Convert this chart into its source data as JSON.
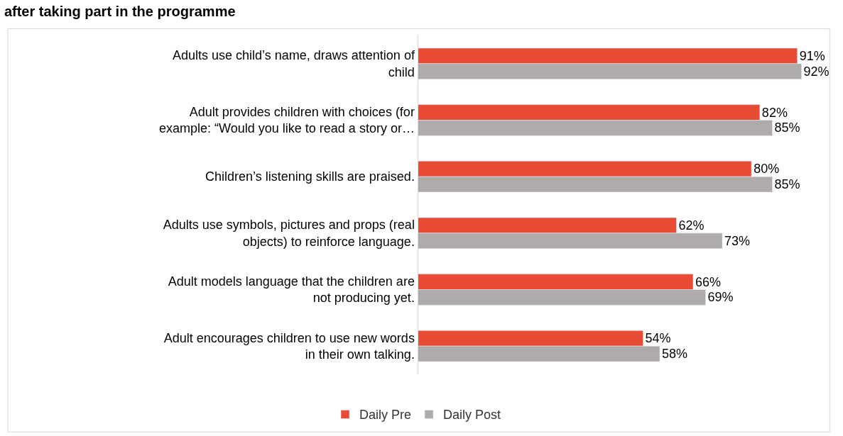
{
  "chart_data": {
    "type": "bar",
    "orientation": "horizontal",
    "title": "after taking part in the programme",
    "categories": [
      "Adults use child’s name, draws attention of child",
      "Adult provides children with choices (for example: “Would you like to read a story or…",
      "Children’s listening skills are praised.",
      "Adults use symbols, pictures and props (real objects) to reinforce language.",
      "Adult models language that the children are not producing yet.",
      "Adult encourages children to use new words in their own talking."
    ],
    "series": [
      {
        "name": "Daily Pre",
        "color": "#e84c35",
        "values": [
          91,
          82,
          80,
          62,
          66,
          54
        ],
        "value_labels": [
          "91%",
          "82%",
          "80%",
          "62%",
          "66%",
          "54%"
        ]
      },
      {
        "name": "Daily Post",
        "color": "#afabab",
        "values": [
          92,
          85,
          85,
          73,
          69,
          58
        ],
        "value_labels": [
          "92%",
          "85%",
          "85%",
          "73%",
          "69%",
          "58%"
        ]
      }
    ],
    "tick_labels": "y",
    "legend": "bottom"
  }
}
